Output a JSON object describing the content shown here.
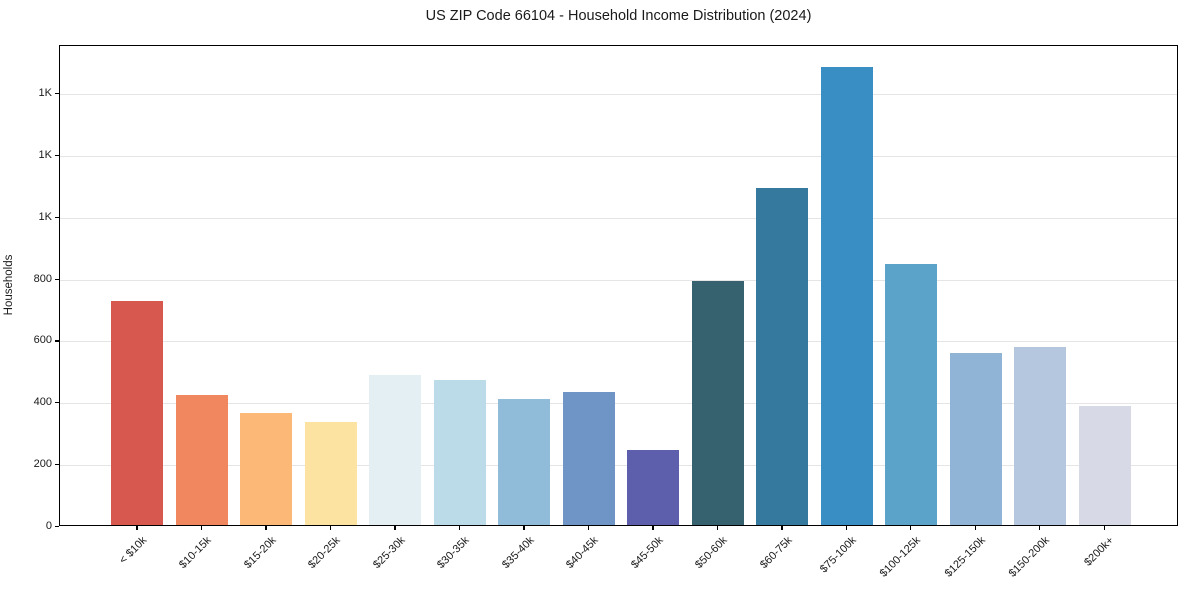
{
  "chart_data": {
    "type": "bar",
    "title": "US ZIP Code 66104 - Household Income Distribution (2024)",
    "xlabel": "",
    "ylabel": "Households",
    "categories": [
      "< $10k",
      "$10-15k",
      "$15-20k",
      "$20-25k",
      "$25-30k",
      "$30-35k",
      "$35-40k",
      "$40-45k",
      "$45-50k",
      "$50-60k",
      "$60-75k",
      "$75-100k",
      "$100-125k",
      "$125-150k",
      "$150-200k",
      "$200k+"
    ],
    "values": [
      725,
      420,
      362,
      333,
      485,
      469,
      408,
      431,
      244,
      789,
      1089,
      1480,
      843,
      557,
      576,
      385
    ],
    "bar_colors": [
      "#d7584f",
      "#f0875f",
      "#fbb877",
      "#fde3a2",
      "#e4eff3",
      "#bcdbe8",
      "#90bcda",
      "#6f94c6",
      "#5d5fad",
      "#36616f",
      "#35799f",
      "#398fc3",
      "#5ba3c9",
      "#8fb4d5",
      "#b5c7de",
      "#d7d9e6"
    ],
    "ylim": [
      0,
      1555
    ],
    "yticks": [
      {
        "value": 0,
        "label": "0"
      },
      {
        "value": 200,
        "label": "200"
      },
      {
        "value": 400,
        "label": "400"
      },
      {
        "value": 600,
        "label": "600"
      },
      {
        "value": 800,
        "label": "800"
      },
      {
        "value": 1000,
        "label": "1K"
      },
      {
        "value": 1200,
        "label": "1K"
      },
      {
        "value": 1400,
        "label": "1K"
      }
    ],
    "grid": "horizontal",
    "legend": "none",
    "colors": {
      "text": "#1a1a1a",
      "grid": "#e5e5e5",
      "axis": "#000000",
      "background": "#ffffff"
    }
  }
}
